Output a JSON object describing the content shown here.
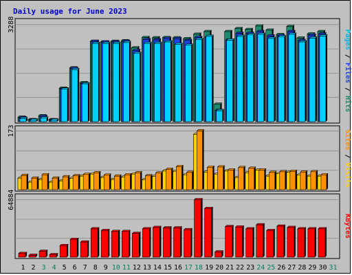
{
  "chart_data": {
    "type": "bar",
    "title": "Daily usage for June 2023",
    "days": [
      "1",
      "2",
      "3",
      "4",
      "5",
      "6",
      "7",
      "8",
      "9",
      "10",
      "11",
      "12",
      "13",
      "14",
      "15",
      "16",
      "17",
      "18",
      "19",
      "20",
      "21",
      "22",
      "23",
      "24",
      "25",
      "26",
      "27",
      "28",
      "29",
      "30",
      "31"
    ],
    "weekend_days": [
      3,
      4,
      10,
      11,
      17,
      18,
      24,
      25,
      31
    ],
    "colors": {
      "hits": "#1e8b6e",
      "files": "#2040e0",
      "pages": "#00d0ff",
      "visits": "#ffd000",
      "sites": "#ff9000",
      "kbytes": "#ff0000",
      "title": "#0000cc",
      "weekday_label": "#000000",
      "weekend_label": "#008060",
      "plot_bg": "#c0c0c0",
      "grid": "#888888"
    },
    "panels": [
      {
        "id": "hits",
        "max_label": "3288",
        "max": 3400,
        "axis_label_parts": [
          {
            "text": "Pages",
            "color": "#00b8e0"
          },
          {
            "text": " / ",
            "color": "#000000"
          },
          {
            "text": "Files",
            "color": "#2040e0"
          },
          {
            "text": " / ",
            "color": "#000000"
          },
          {
            "text": "Hits",
            "color": "#1e8b6e"
          }
        ],
        "series": [
          {
            "name": "Hits",
            "color": "#1e8b6e",
            "values": [
              150,
              70,
              200,
              70,
              1130,
              1820,
              1320,
              2720,
              2700,
              2720,
              2740,
              2500,
              2850,
              2840,
              2850,
              2840,
              2810,
              2960,
              3050,
              590,
              3050,
              3150,
              3120,
              3240,
              3100,
              2950,
              3220,
              2830,
              2970,
              3050
            ]
          },
          {
            "name": "Files",
            "color": "#2040e0",
            "values": [
              130,
              60,
              180,
              60,
              1110,
              1800,
              1290,
              2720,
              2700,
              2700,
              2720,
              2410,
              2780,
              2770,
              2820,
              2810,
              2750,
              2850,
              2860,
              380,
              2760,
              2990,
              2990,
              3050,
              2900,
              2910,
              3050,
              2750,
              2930,
              2970
            ]
          },
          {
            "name": "Pages",
            "color": "#00d0ff",
            "values": [
              100,
              50,
              120,
              50,
              1100,
              1760,
              1280,
              2650,
              2650,
              2650,
              2680,
              2310,
              2650,
              2650,
              2700,
              2620,
              2590,
              2780,
              2890,
              370,
              2760,
              2890,
              2940,
              2960,
              2820,
              2870,
              2960,
              2700,
              2830,
              2900
            ]
          }
        ]
      },
      {
        "id": "visits",
        "max_label": "173",
        "max": 180,
        "axis_label_parts": [
          {
            "text": "Sites",
            "color": "#ff9000"
          },
          {
            "text": " / ",
            "color": "#000000"
          },
          {
            "text": "Visits",
            "color": "#ffd000"
          }
        ],
        "series": [
          {
            "name": "Visits",
            "color": "#ffd000",
            "values": [
              34,
              22,
              30,
              22,
              26,
              33,
              40,
              46,
              36,
              30,
              37,
              46,
              29,
              39,
              55,
              54,
              44,
              163,
              52,
              46,
              55,
              36,
              50,
              58,
              40,
              47,
              51,
              43,
              40,
              40
            ]
          },
          {
            "name": "Sites",
            "color": "#ff9000",
            "values": [
              42,
              34,
              44,
              34,
              38,
              41,
              45,
              50,
              43,
              40,
              44,
              50,
              41,
              49,
              60,
              68,
              51,
              173,
              66,
              67,
              58,
              65,
              63,
              58,
              51,
              53,
              54,
              52,
              53,
              44
            ]
          }
        ]
      },
      {
        "id": "kbytes",
        "max_label": "64884",
        "max": 68500,
        "axis_label_parts": [
          {
            "text": "KBytes",
            "color": "#ff0000"
          }
        ],
        "series": [
          {
            "name": "KBytes",
            "color": "#ff0000",
            "values": [
              4000,
              2000,
              6500,
              2700,
              13000,
              20000,
              17000,
              32000,
              30000,
              29000,
              29000,
              26800,
              32000,
              33500,
              33000,
              33000,
              31000,
              65000,
              55000,
              5800,
              34500,
              34000,
              32000,
              36500,
              30000,
              35000,
              33500,
              32000,
              32000,
              32000
            ]
          }
        ]
      }
    ]
  }
}
